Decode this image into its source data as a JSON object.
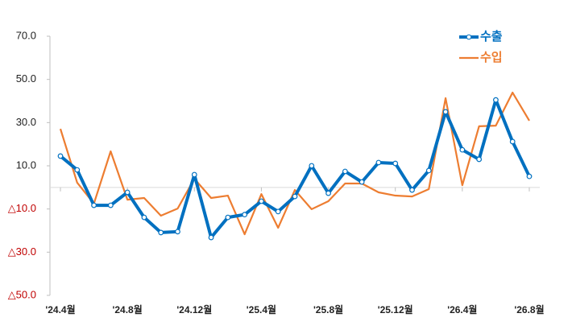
{
  "chart_data": {
    "type": "line",
    "categories": [
      "'24.4월",
      null,
      null,
      null,
      "'24.8월",
      null,
      null,
      null,
      "'24.12월",
      null,
      null,
      null,
      "'25.4월",
      null,
      null,
      null,
      "'25.8월",
      null,
      null,
      null,
      "'25.12월",
      null,
      null,
      null,
      "'26.4월",
      null,
      null,
      null,
      "'26.8월"
    ],
    "series": [
      {
        "name": "수출",
        "color": "#0070c0",
        "markers": true,
        "values": [
          14.5,
          8.1,
          -8.3,
          -8.3,
          -2.3,
          -13.9,
          -20.9,
          -20.5,
          5.9,
          -23.2,
          -13.9,
          -12.6,
          -6.4,
          -11.2,
          -4.2,
          10.0,
          -2.7,
          7.4,
          2.5,
          11.5,
          11.1,
          -1.2,
          7.8,
          35.0,
          17.4,
          13.0,
          40.5,
          21.2,
          5.1
        ]
      },
      {
        "name": "수입",
        "color": "#ed7d31",
        "markers": false,
        "values": [
          27.1,
          2.2,
          -7.5,
          16.7,
          -5.7,
          -4.9,
          -13.1,
          -9.8,
          4.0,
          -4.9,
          -3.8,
          -21.7,
          -3.1,
          -18.7,
          -1.2,
          -10.1,
          -6.4,
          1.8,
          1.8,
          -2.3,
          -3.8,
          -4.2,
          -0.8,
          41.3,
          1.0,
          28.3,
          28.6,
          43.9,
          30.9
        ]
      }
    ],
    "ylim": [
      -50,
      70
    ],
    "yticks": [
      {
        "value": 70,
        "label": "70.0"
      },
      {
        "value": 50,
        "label": "50.0"
      },
      {
        "value": 30,
        "label": "30.0"
      },
      {
        "value": 10,
        "label": "10.0"
      },
      {
        "value": -10,
        "label": "△10.0"
      },
      {
        "value": -30,
        "label": "△30.0"
      },
      {
        "value": -50,
        "label": "△50.0"
      }
    ],
    "negative_tick_color": "#c00000",
    "grid": false
  }
}
